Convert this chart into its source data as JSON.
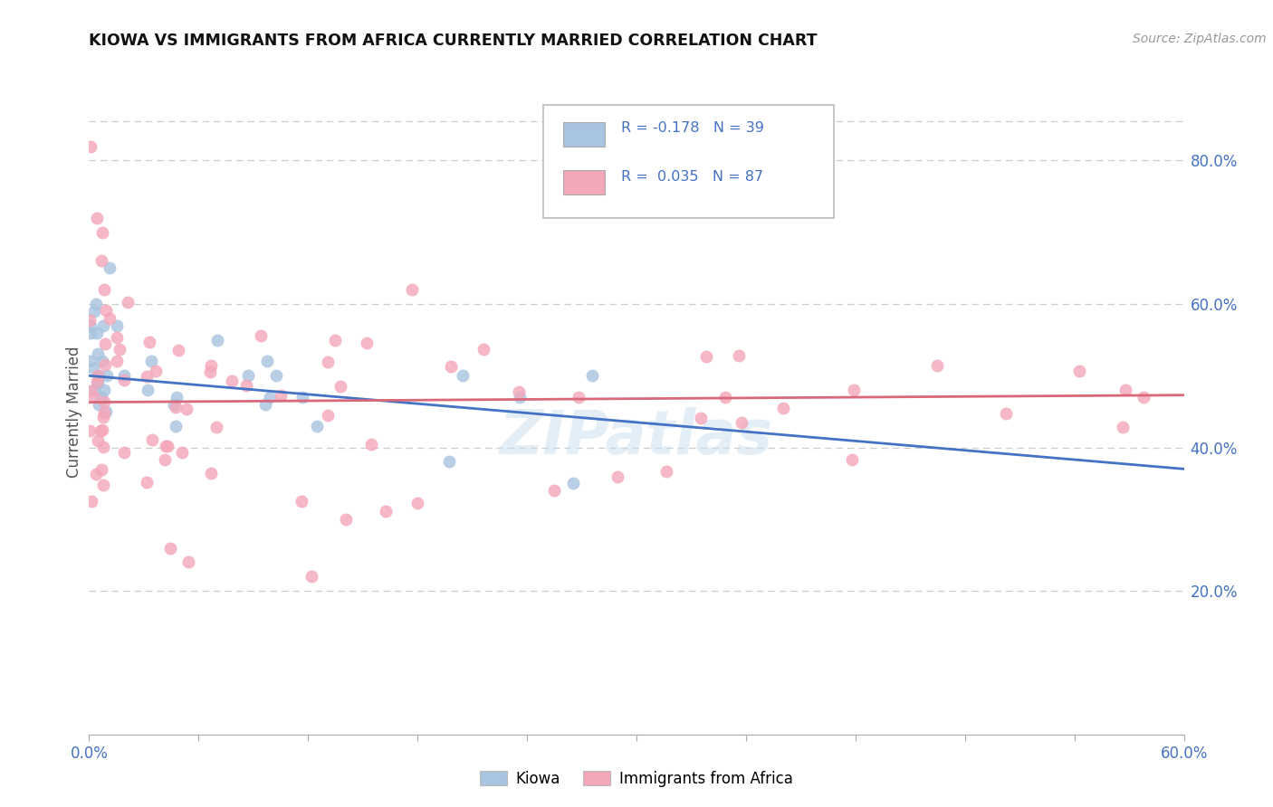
{
  "title": "KIOWA VS IMMIGRANTS FROM AFRICA CURRENTLY MARRIED CORRELATION CHART",
  "source": "Source: ZipAtlas.com",
  "ylabel": "Currently Married",
  "right_yticks": [
    0.2,
    0.4,
    0.6,
    0.8
  ],
  "right_yticklabels": [
    "20.0%",
    "40.0%",
    "60.0%",
    "80.0%"
  ],
  "xlim": [
    0.0,
    0.6
  ],
  "ylim": [
    0.0,
    0.9
  ],
  "kiowa_R": -0.178,
  "kiowa_N": 39,
  "africa_R": 0.035,
  "africa_N": 87,
  "kiowa_color": "#a8c4e0",
  "africa_color": "#f4a7b9",
  "kiowa_line_color": "#4472c4",
  "africa_line_color": "#d9687a",
  "legend_border_color": "#4472c4",
  "watermark": "ZIPatlas",
  "legend_R_color": "#4472c4",
  "legend_N_color": "#4472c4"
}
